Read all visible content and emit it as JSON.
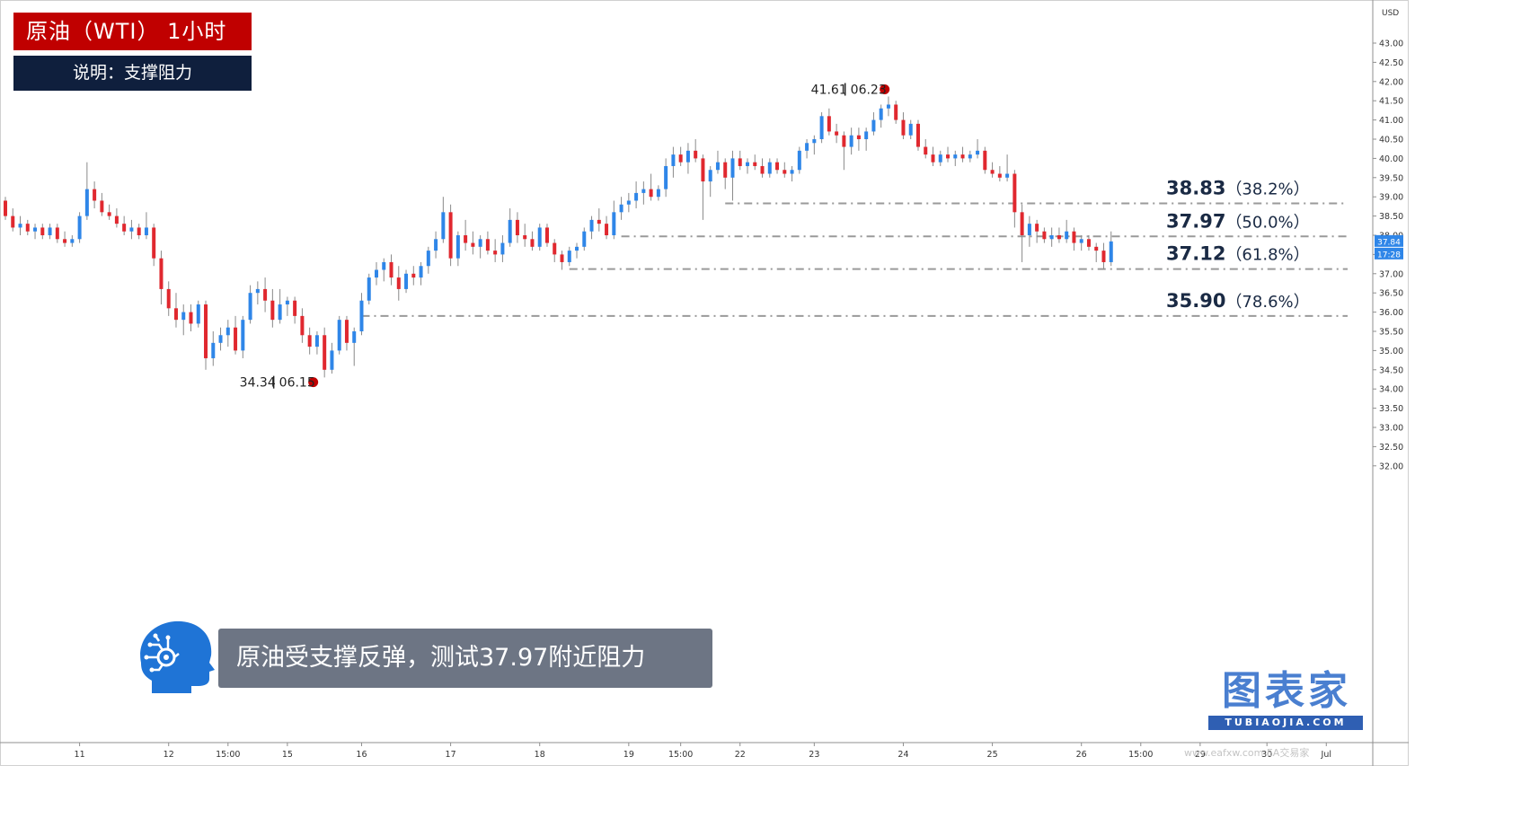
{
  "header": {
    "title": "原油（WTI）  1小时",
    "subtitle": "说明：支撑阻力"
  },
  "caption": "原油受支撑反弹，测试37.97附近阻力",
  "brand": {
    "cn": "图表家",
    "en": "TUBIAOJIA.COM"
  },
  "watermark": "www.eafxw.com   EA交易家",
  "chart_data": {
    "type": "candlestick",
    "currency": "USD",
    "ylim": [
      31.85,
      43.3
    ],
    "y_ticks": [
      "32.00",
      "32.50",
      "33.00",
      "33.50",
      "34.00",
      "34.50",
      "35.00",
      "35.50",
      "36.00",
      "36.50",
      "37.00",
      "37.50",
      "38.00",
      "38.50",
      "39.00",
      "39.50",
      "40.00",
      "40.50",
      "41.00",
      "41.50",
      "42.00",
      "42.50",
      "43.00"
    ],
    "x_ticks": [
      {
        "label": "11",
        "i": 10
      },
      {
        "label": "12",
        "i": 22
      },
      {
        "label": "15:00",
        "i": 30
      },
      {
        "label": "15",
        "i": 38
      },
      {
        "label": "16",
        "i": 48
      },
      {
        "label": "17",
        "i": 60
      },
      {
        "label": "18",
        "i": 72
      },
      {
        "label": "19",
        "i": 84
      },
      {
        "label": "15:00",
        "i": 91
      },
      {
        "label": "22",
        "i": 99
      },
      {
        "label": "23",
        "i": 109
      },
      {
        "label": "24",
        "i": 121
      },
      {
        "label": "25",
        "i": 133
      },
      {
        "label": "26",
        "i": 145
      },
      {
        "label": "15:00",
        "i": 153
      },
      {
        "label": "29",
        "i": 161
      },
      {
        "label": "30",
        "i": 170
      },
      {
        "label": "Jul",
        "i": 178
      }
    ],
    "price_label": "37.84",
    "time_label": "17:28",
    "colors": {
      "up": "#2f86e8",
      "down": "#e0282f",
      "marker": "#c00000",
      "level": "#9a9a9a"
    },
    "levels": [
      {
        "price": 38.83,
        "label": "38.83",
        "pct": "（38.2%）",
        "from_i": 97
      },
      {
        "price": 37.97,
        "label": "37.97",
        "pct": "（50.0%）",
        "from_i": 83
      },
      {
        "price": 37.12,
        "label": "37.12",
        "pct": "（61.8%）",
        "from_i": 76
      },
      {
        "price": 35.9,
        "label": "35.90",
        "pct": "（78.6%）",
        "from_i": 48
      }
    ],
    "annotations": [
      {
        "price": 41.61,
        "date": "06.23",
        "i": 118,
        "position": "top"
      },
      {
        "price": 34.34,
        "date": "06.15",
        "i": 41,
        "position": "bottom"
      }
    ],
    "ohlc": [
      [
        38.9,
        39.0,
        38.4,
        38.5
      ],
      [
        38.5,
        38.7,
        38.1,
        38.2
      ],
      [
        38.2,
        38.5,
        38.0,
        38.3
      ],
      [
        38.3,
        38.4,
        38.0,
        38.1
      ],
      [
        38.1,
        38.3,
        37.9,
        38.2
      ],
      [
        38.2,
        38.3,
        37.9,
        38.0
      ],
      [
        38.0,
        38.3,
        37.9,
        38.2
      ],
      [
        38.2,
        38.3,
        37.8,
        37.9
      ],
      [
        37.9,
        38.1,
        37.7,
        37.8
      ],
      [
        37.8,
        38.0,
        37.7,
        37.9
      ],
      [
        37.9,
        38.6,
        37.8,
        38.5
      ],
      [
        38.5,
        39.9,
        38.4,
        39.2
      ],
      [
        39.2,
        39.4,
        38.7,
        38.9
      ],
      [
        38.9,
        39.1,
        38.5,
        38.6
      ],
      [
        38.6,
        38.8,
        38.4,
        38.5
      ],
      [
        38.5,
        38.7,
        38.2,
        38.3
      ],
      [
        38.3,
        38.5,
        38.0,
        38.1
      ],
      [
        38.1,
        38.4,
        37.9,
        38.2
      ],
      [
        38.2,
        38.3,
        37.9,
        38.0
      ],
      [
        38.0,
        38.6,
        37.9,
        38.2
      ],
      [
        38.2,
        38.3,
        37.2,
        37.4
      ],
      [
        37.4,
        37.6,
        36.2,
        36.6
      ],
      [
        36.6,
        36.8,
        35.9,
        36.1
      ],
      [
        36.1,
        36.5,
        35.6,
        35.8
      ],
      [
        35.8,
        36.2,
        35.4,
        36.0
      ],
      [
        36.0,
        36.2,
        35.5,
        35.7
      ],
      [
        35.7,
        36.3,
        35.6,
        36.2
      ],
      [
        36.2,
        36.3,
        34.5,
        34.8
      ],
      [
        34.8,
        35.5,
        34.6,
        35.2
      ],
      [
        35.2,
        35.6,
        35.0,
        35.4
      ],
      [
        35.4,
        35.8,
        35.1,
        35.6
      ],
      [
        35.6,
        35.9,
        34.9,
        35.0
      ],
      [
        35.0,
        35.9,
        34.8,
        35.8
      ],
      [
        35.8,
        36.7,
        35.7,
        36.5
      ],
      [
        36.5,
        36.8,
        36.2,
        36.6
      ],
      [
        36.6,
        36.9,
        36.0,
        36.3
      ],
      [
        36.3,
        36.6,
        35.6,
        35.8
      ],
      [
        35.8,
        36.6,
        35.7,
        36.2
      ],
      [
        36.2,
        36.4,
        35.9,
        36.3
      ],
      [
        36.3,
        36.4,
        35.7,
        35.9
      ],
      [
        35.9,
        36.1,
        35.2,
        35.4
      ],
      [
        35.4,
        35.6,
        34.9,
        35.1
      ],
      [
        35.1,
        35.5,
        34.9,
        35.4
      ],
      [
        35.4,
        35.6,
        34.3,
        34.5
      ],
      [
        34.5,
        35.2,
        34.4,
        35.0
      ],
      [
        35.0,
        35.9,
        34.9,
        35.8
      ],
      [
        35.8,
        35.9,
        35.0,
        35.2
      ],
      [
        35.2,
        35.6,
        34.6,
        35.5
      ],
      [
        35.5,
        36.5,
        35.4,
        36.3
      ],
      [
        36.3,
        37.0,
        36.2,
        36.9
      ],
      [
        36.9,
        37.3,
        36.7,
        37.1
      ],
      [
        37.1,
        37.4,
        36.8,
        37.3
      ],
      [
        37.3,
        37.5,
        36.7,
        36.9
      ],
      [
        36.9,
        37.2,
        36.3,
        36.6
      ],
      [
        36.6,
        37.1,
        36.5,
        37.0
      ],
      [
        37.0,
        37.2,
        36.7,
        36.9
      ],
      [
        36.9,
        37.3,
        36.7,
        37.2
      ],
      [
        37.2,
        37.7,
        37.0,
        37.6
      ],
      [
        37.6,
        38.1,
        37.4,
        37.9
      ],
      [
        37.9,
        39.0,
        37.8,
        38.6
      ],
      [
        38.6,
        38.8,
        37.2,
        37.4
      ],
      [
        37.4,
        38.1,
        37.2,
        38.0
      ],
      [
        38.0,
        38.4,
        37.6,
        37.8
      ],
      [
        37.8,
        38.1,
        37.5,
        37.7
      ],
      [
        37.7,
        38.0,
        37.4,
        37.9
      ],
      [
        37.9,
        38.1,
        37.5,
        37.6
      ],
      [
        37.6,
        37.9,
        37.3,
        37.5
      ],
      [
        37.5,
        38.0,
        37.3,
        37.8
      ],
      [
        37.8,
        38.7,
        37.7,
        38.4
      ],
      [
        38.4,
        38.6,
        37.8,
        38.0
      ],
      [
        38.0,
        38.3,
        37.7,
        37.9
      ],
      [
        37.9,
        38.1,
        37.6,
        37.7
      ],
      [
        37.7,
        38.3,
        37.6,
        38.2
      ],
      [
        38.2,
        38.3,
        37.7,
        37.8
      ],
      [
        37.8,
        37.9,
        37.3,
        37.5
      ],
      [
        37.5,
        37.6,
        37.1,
        37.3
      ],
      [
        37.3,
        37.7,
        37.2,
        37.6
      ],
      [
        37.6,
        37.8,
        37.4,
        37.7
      ],
      [
        37.7,
        38.2,
        37.6,
        38.1
      ],
      [
        38.1,
        38.5,
        37.9,
        38.4
      ],
      [
        38.4,
        38.7,
        38.1,
        38.3
      ],
      [
        38.3,
        38.5,
        37.9,
        38.0
      ],
      [
        38.0,
        38.9,
        37.9,
        38.6
      ],
      [
        38.6,
        39.0,
        38.4,
        38.8
      ],
      [
        38.8,
        39.1,
        38.6,
        38.9
      ],
      [
        38.9,
        39.4,
        38.7,
        39.1
      ],
      [
        39.1,
        39.4,
        38.8,
        39.2
      ],
      [
        39.2,
        39.6,
        38.9,
        39.0
      ],
      [
        39.0,
        39.3,
        38.9,
        39.2
      ],
      [
        39.2,
        40.0,
        39.0,
        39.8
      ],
      [
        39.8,
        40.3,
        39.5,
        40.1
      ],
      [
        40.1,
        40.3,
        39.8,
        39.9
      ],
      [
        39.9,
        40.4,
        39.6,
        40.2
      ],
      [
        40.2,
        40.5,
        39.9,
        40.0
      ],
      [
        40.0,
        40.1,
        38.4,
        39.4
      ],
      [
        39.4,
        39.8,
        39.0,
        39.7
      ],
      [
        39.7,
        40.2,
        39.6,
        39.9
      ],
      [
        39.9,
        40.0,
        39.2,
        39.5
      ],
      [
        39.5,
        40.2,
        38.9,
        40.0
      ],
      [
        40.0,
        40.2,
        39.7,
        39.8
      ],
      [
        39.8,
        40.0,
        39.6,
        39.9
      ],
      [
        39.9,
        40.1,
        39.7,
        39.8
      ],
      [
        39.8,
        40.0,
        39.5,
        39.6
      ],
      [
        39.6,
        40.0,
        39.5,
        39.9
      ],
      [
        39.9,
        40.0,
        39.6,
        39.7
      ],
      [
        39.7,
        39.9,
        39.5,
        39.6
      ],
      [
        39.6,
        39.8,
        39.4,
        39.7
      ],
      [
        39.7,
        40.3,
        39.6,
        40.2
      ],
      [
        40.2,
        40.5,
        40.0,
        40.4
      ],
      [
        40.4,
        40.6,
        40.1,
        40.5
      ],
      [
        40.5,
        41.2,
        40.4,
        41.1
      ],
      [
        41.1,
        41.3,
        40.6,
        40.7
      ],
      [
        40.7,
        40.9,
        40.4,
        40.6
      ],
      [
        40.6,
        40.7,
        39.7,
        40.3
      ],
      [
        40.3,
        40.8,
        40.1,
        40.6
      ],
      [
        40.6,
        40.8,
        40.2,
        40.5
      ],
      [
        40.5,
        40.8,
        40.2,
        40.7
      ],
      [
        40.7,
        41.2,
        40.6,
        41.0
      ],
      [
        41.0,
        41.4,
        40.8,
        41.3
      ],
      [
        41.3,
        41.61,
        41.1,
        41.4
      ],
      [
        41.4,
        41.5,
        40.9,
        41.0
      ],
      [
        41.0,
        41.2,
        40.5,
        40.6
      ],
      [
        40.6,
        41.0,
        40.5,
        40.9
      ],
      [
        40.9,
        41.0,
        40.2,
        40.3
      ],
      [
        40.3,
        40.5,
        40.0,
        40.1
      ],
      [
        40.1,
        40.3,
        39.8,
        39.9
      ],
      [
        39.9,
        40.2,
        39.8,
        40.1
      ],
      [
        40.1,
        40.3,
        39.9,
        40.0
      ],
      [
        40.0,
        40.2,
        39.8,
        40.1
      ],
      [
        40.1,
        40.3,
        39.9,
        40.0
      ],
      [
        40.0,
        40.2,
        39.9,
        40.1
      ],
      [
        40.1,
        40.5,
        40.0,
        40.2
      ],
      [
        40.2,
        40.3,
        39.6,
        39.7
      ],
      [
        39.7,
        39.9,
        39.5,
        39.6
      ],
      [
        39.6,
        39.8,
        39.4,
        39.5
      ],
      [
        39.5,
        40.1,
        39.4,
        39.6
      ],
      [
        39.6,
        39.7,
        38.2,
        38.6
      ],
      [
        38.6,
        38.8,
        37.3,
        38.0
      ],
      [
        38.0,
        38.5,
        37.7,
        38.3
      ],
      [
        38.3,
        38.4,
        37.8,
        38.1
      ],
      [
        38.1,
        38.2,
        37.8,
        37.9
      ],
      [
        37.9,
        38.2,
        37.7,
        38.0
      ],
      [
        38.0,
        38.2,
        37.8,
        37.9
      ],
      [
        37.9,
        38.4,
        37.8,
        38.1
      ],
      [
        38.1,
        38.2,
        37.6,
        37.8
      ],
      [
        37.8,
        38.0,
        37.6,
        37.9
      ],
      [
        37.9,
        38.0,
        37.6,
        37.7
      ],
      [
        37.7,
        37.8,
        37.3,
        37.6
      ],
      [
        37.6,
        37.8,
        37.12,
        37.3
      ],
      [
        37.3,
        38.1,
        37.2,
        37.84
      ]
    ]
  }
}
